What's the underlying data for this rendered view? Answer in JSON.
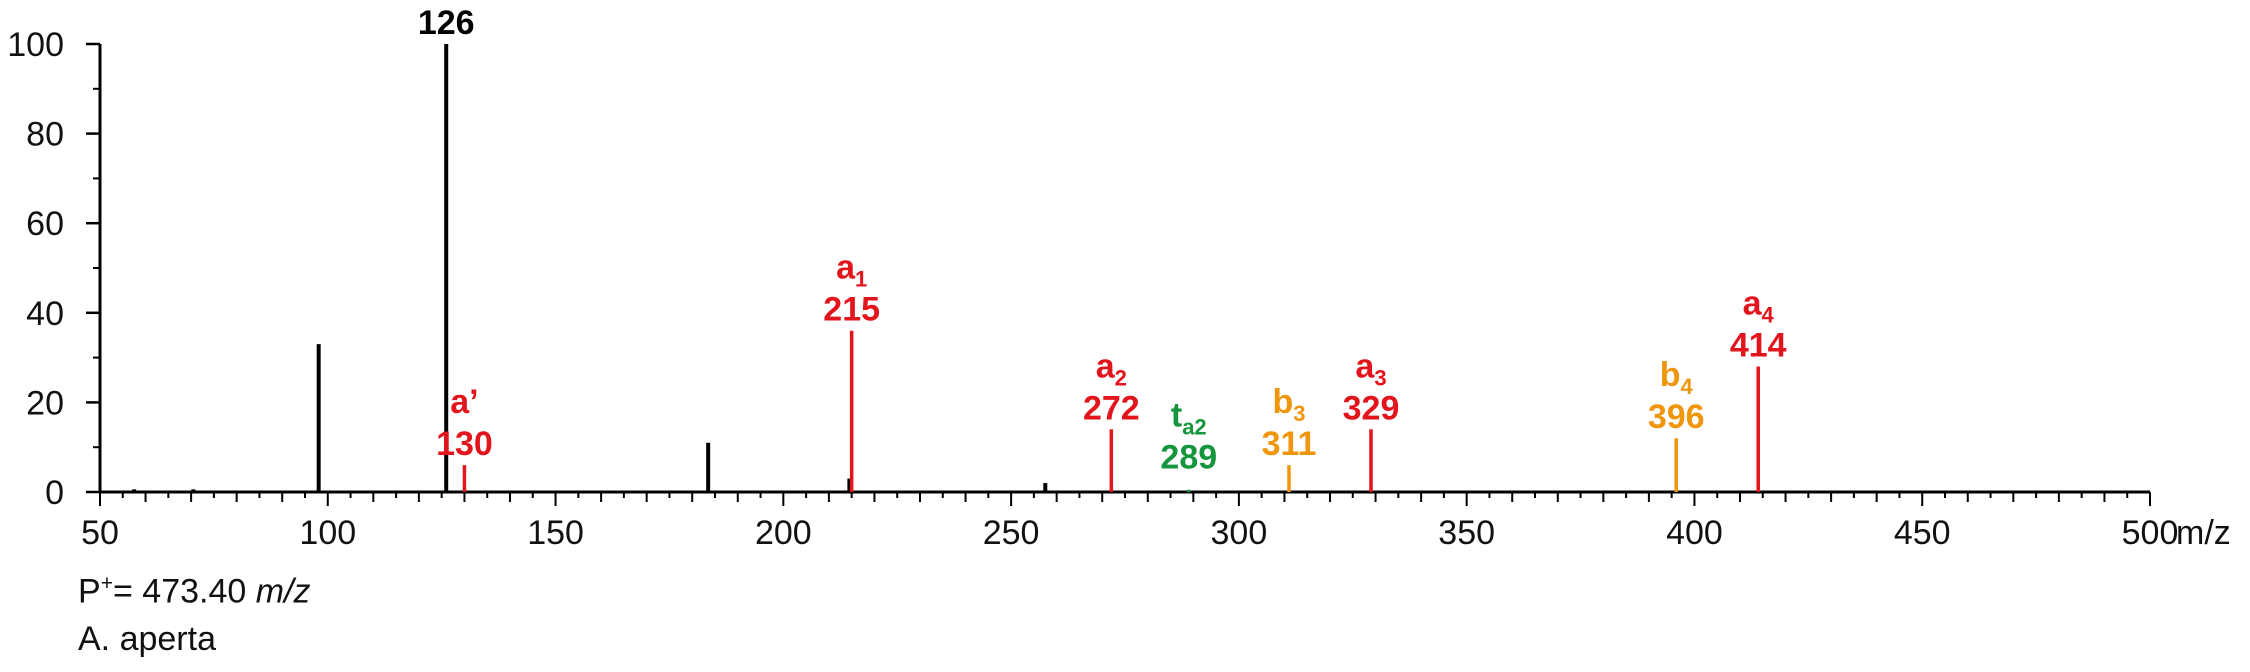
{
  "chart_data": {
    "type": "bar",
    "x_unit": "m/z",
    "xlim": [
      50,
      500
    ],
    "ylim": [
      0,
      100
    ],
    "x_ticks": [
      "50",
      "100",
      "150",
      "200",
      "250",
      "300",
      "350",
      "400",
      "450",
      "500"
    ],
    "y_ticks": [
      "0",
      "20",
      "40",
      "60",
      "80",
      "100"
    ],
    "grid": false,
    "colors": {
      "black": "#000000",
      "red": "#e2141c",
      "orange": "#f0960d",
      "green": "#15963c"
    },
    "peaks": [
      {
        "x": 57.5,
        "y": 0.6,
        "color": "black"
      },
      {
        "x": 70.5,
        "y": 0.6,
        "color": "black"
      },
      {
        "x": 98,
        "y": 33,
        "color": "black"
      },
      {
        "x": 126,
        "y": 100,
        "color": "black",
        "label": "126"
      },
      {
        "x": 130,
        "y": 6,
        "color": "red",
        "main": "130",
        "ion": "a’"
      },
      {
        "x": 183.5,
        "y": 11,
        "color": "black"
      },
      {
        "x": 214.5,
        "y": 3,
        "color": "black"
      },
      {
        "x": 215,
        "y": 36,
        "color": "red",
        "main": "215",
        "ion": "a",
        "ion_sub": "1"
      },
      {
        "x": 257.5,
        "y": 2,
        "color": "black"
      },
      {
        "x": 272,
        "y": 14,
        "color": "red",
        "main": "272",
        "ion": "a",
        "ion_sub": "2"
      },
      {
        "x": 289,
        "y": 0.5,
        "color": "green",
        "main": "289",
        "ion": "t",
        "ion_sub": "a2"
      },
      {
        "x": 311,
        "y": 6,
        "color": "orange",
        "main": "311",
        "ion": "b",
        "ion_sub": "3"
      },
      {
        "x": 329,
        "y": 14,
        "color": "red",
        "main": "329",
        "ion": "a",
        "ion_sub": "3"
      },
      {
        "x": 396,
        "y": 12,
        "color": "orange",
        "main": "396",
        "ion": "b",
        "ion_sub": "4"
      },
      {
        "x": 414,
        "y": 28,
        "color": "red",
        "main": "414",
        "ion": "a",
        "ion_sub": "4"
      }
    ]
  },
  "annotations": {
    "precursor_prefix": "P",
    "precursor_sup": "+",
    "precursor_value": "= 473.40 ",
    "precursor_unit": "m/z",
    "species": "A. aperta"
  }
}
